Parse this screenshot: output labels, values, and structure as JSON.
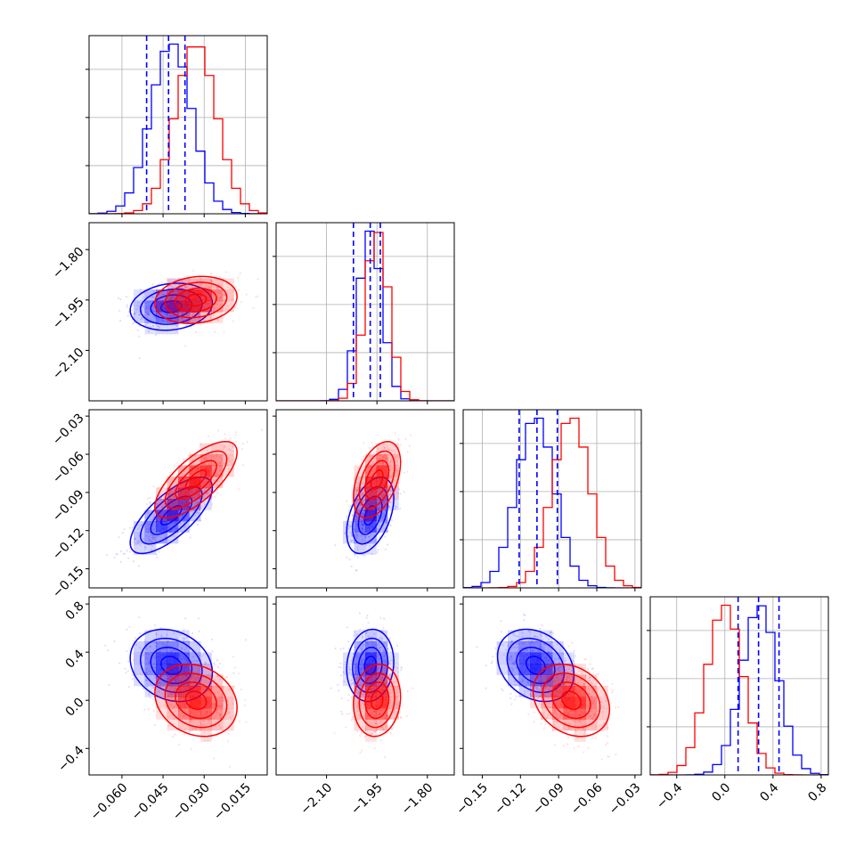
{
  "chart_data": {
    "type": "corner",
    "title": "",
    "series": [
      {
        "color": "#0000ff",
        "means": [
          -0.042,
          -1.97,
          -0.108,
          0.29
        ],
        "stds": [
          0.0075,
          0.035,
          0.015,
          0.15
        ],
        "quantiles": [
          [
            -0.051,
            -0.043,
            -0.037
          ],
          [
            -2.02,
            -1.97,
            -1.94
          ],
          [
            -0.121,
            -0.107,
            -0.091
          ],
          [
            0.11,
            0.28,
            0.45
          ]
        ],
        "correlations": {
          "1-0": 0.15,
          "2-0": 0.72,
          "3-0": -0.2,
          "2-1": 0.45,
          "3-1": 0.1,
          "3-2": -0.25
        }
      },
      {
        "color": "#ff0000",
        "means": [
          -0.033,
          -1.95,
          -0.08,
          0.0
        ],
        "stds": [
          0.0075,
          0.035,
          0.015,
          0.15
        ],
        "correlations": {
          "1-0": 0.15,
          "2-0": 0.72,
          "3-0": -0.2,
          "2-1": 0.45,
          "3-1": 0.1,
          "3-2": -0.25
        }
      }
    ],
    "parameters": [
      {
        "range": [
          -0.072,
          -0.007
        ],
        "ticks": [
          "−0.060",
          "−0.045",
          "−0.030",
          "−0.015"
        ],
        "tick_values": [
          -0.06,
          -0.045,
          -0.03,
          -0.015
        ]
      },
      {
        "range": [
          -2.25,
          -1.72
        ],
        "ticks": [
          "−2.10",
          "−1.95",
          "−1.80"
        ],
        "tick_values": [
          -2.1,
          -1.95,
          -1.8
        ]
      },
      {
        "range": [
          -0.165,
          -0.025
        ],
        "ticks": [
          "−0.15",
          "−0.12",
          "−0.09",
          "−0.06",
          "−0.03"
        ],
        "tick_values": [
          -0.15,
          -0.12,
          -0.09,
          -0.06,
          -0.03
        ]
      },
      {
        "range": [
          -0.62,
          0.86
        ],
        "ticks": [
          "−0.4",
          "0.0",
          "0.4",
          "0.8"
        ],
        "tick_values": [
          -0.4,
          0.0,
          0.4,
          0.8
        ]
      }
    ],
    "y_tick_labels": {
      "1": [
        "−2.10",
        "−1.95",
        "−1.80"
      ],
      "2": [
        "−0.15",
        "−0.12",
        "−0.09",
        "−0.06",
        "−0.03"
      ],
      "3": [
        "−0.4",
        "0.0",
        "0.4",
        "0.8"
      ]
    },
    "grid": true
  }
}
